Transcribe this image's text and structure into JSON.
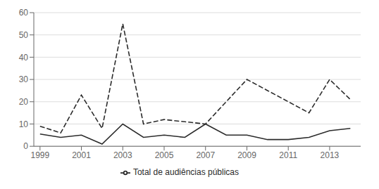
{
  "chart_data": {
    "type": "line",
    "x": [
      1999,
      2000,
      2001,
      2002,
      2003,
      2004,
      2005,
      2006,
      2007,
      2008,
      2009,
      2010,
      2011,
      2012,
      2013,
      2014
    ],
    "series": [
      {
        "color": "#2b2b2b",
        "line_style": "solid",
        "values": [
          5.5,
          4,
          5,
          1,
          10,
          4,
          5,
          4,
          10,
          5,
          5,
          3,
          3,
          4,
          7,
          8
        ]
      },
      {
        "name": "Total de audiências públicas",
        "color": "#2b2b2b",
        "line_style": "dashed",
        "values": [
          9,
          6,
          23,
          8,
          55,
          10,
          12,
          11,
          10,
          20,
          30,
          25,
          20,
          15,
          30,
          21
        ]
      }
    ],
    "xlim": [
      1998.7,
      2014.5
    ],
    "xticks": [
      1999,
      2001,
      2003,
      2005,
      2007,
      2009,
      2011,
      2013
    ],
    "ylim": [
      0,
      60
    ],
    "yticks": [
      0,
      10,
      20,
      30,
      40,
      50,
      60
    ],
    "grid": true,
    "legend": "bottom"
  }
}
